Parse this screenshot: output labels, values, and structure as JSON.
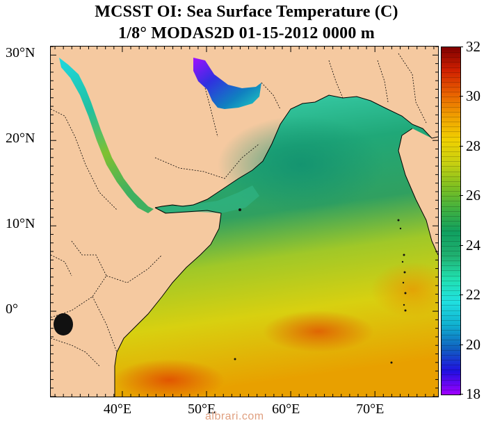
{
  "title": {
    "line1": "MCSST OI:  Sea Surface Temperature (C)",
    "line2": "1/8° MODAS2D 01-15-2012 0000 m"
  },
  "map": {
    "lon_range": [
      31.5,
      77.5
    ],
    "lat_range": [
      -10,
      31
    ],
    "land_color": "#f5c9a0",
    "lat_labels": [
      {
        "lat": 30,
        "text": "30°N"
      },
      {
        "lat": 20,
        "text": "20°N"
      },
      {
        "lat": 10,
        "text": "10°N"
      },
      {
        "lat": 0,
        "text": "0°"
      }
    ],
    "lon_labels": [
      {
        "lon": 40,
        "text": "40°E"
      },
      {
        "lon": 50,
        "text": "50°E"
      },
      {
        "lon": 60,
        "text": "60°E"
      },
      {
        "lon": 70,
        "text": "70°E"
      }
    ]
  },
  "colorbar": {
    "min": 18,
    "max": 32,
    "tick_labels": [
      "18",
      "20",
      "22",
      "24",
      "26",
      "28",
      "30",
      "32"
    ],
    "colors": [
      "#a000ff",
      "#2010e0",
      "#1060c0",
      "#10b0d0",
      "#20e0e0",
      "#20e0b0",
      "#20b070",
      "#10a060",
      "#40b040",
      "#80c020",
      "#c8d010",
      "#f0d000",
      "#f0a000",
      "#e86000",
      "#d02000",
      "#800000"
    ]
  },
  "watermark": "albrari.com"
}
